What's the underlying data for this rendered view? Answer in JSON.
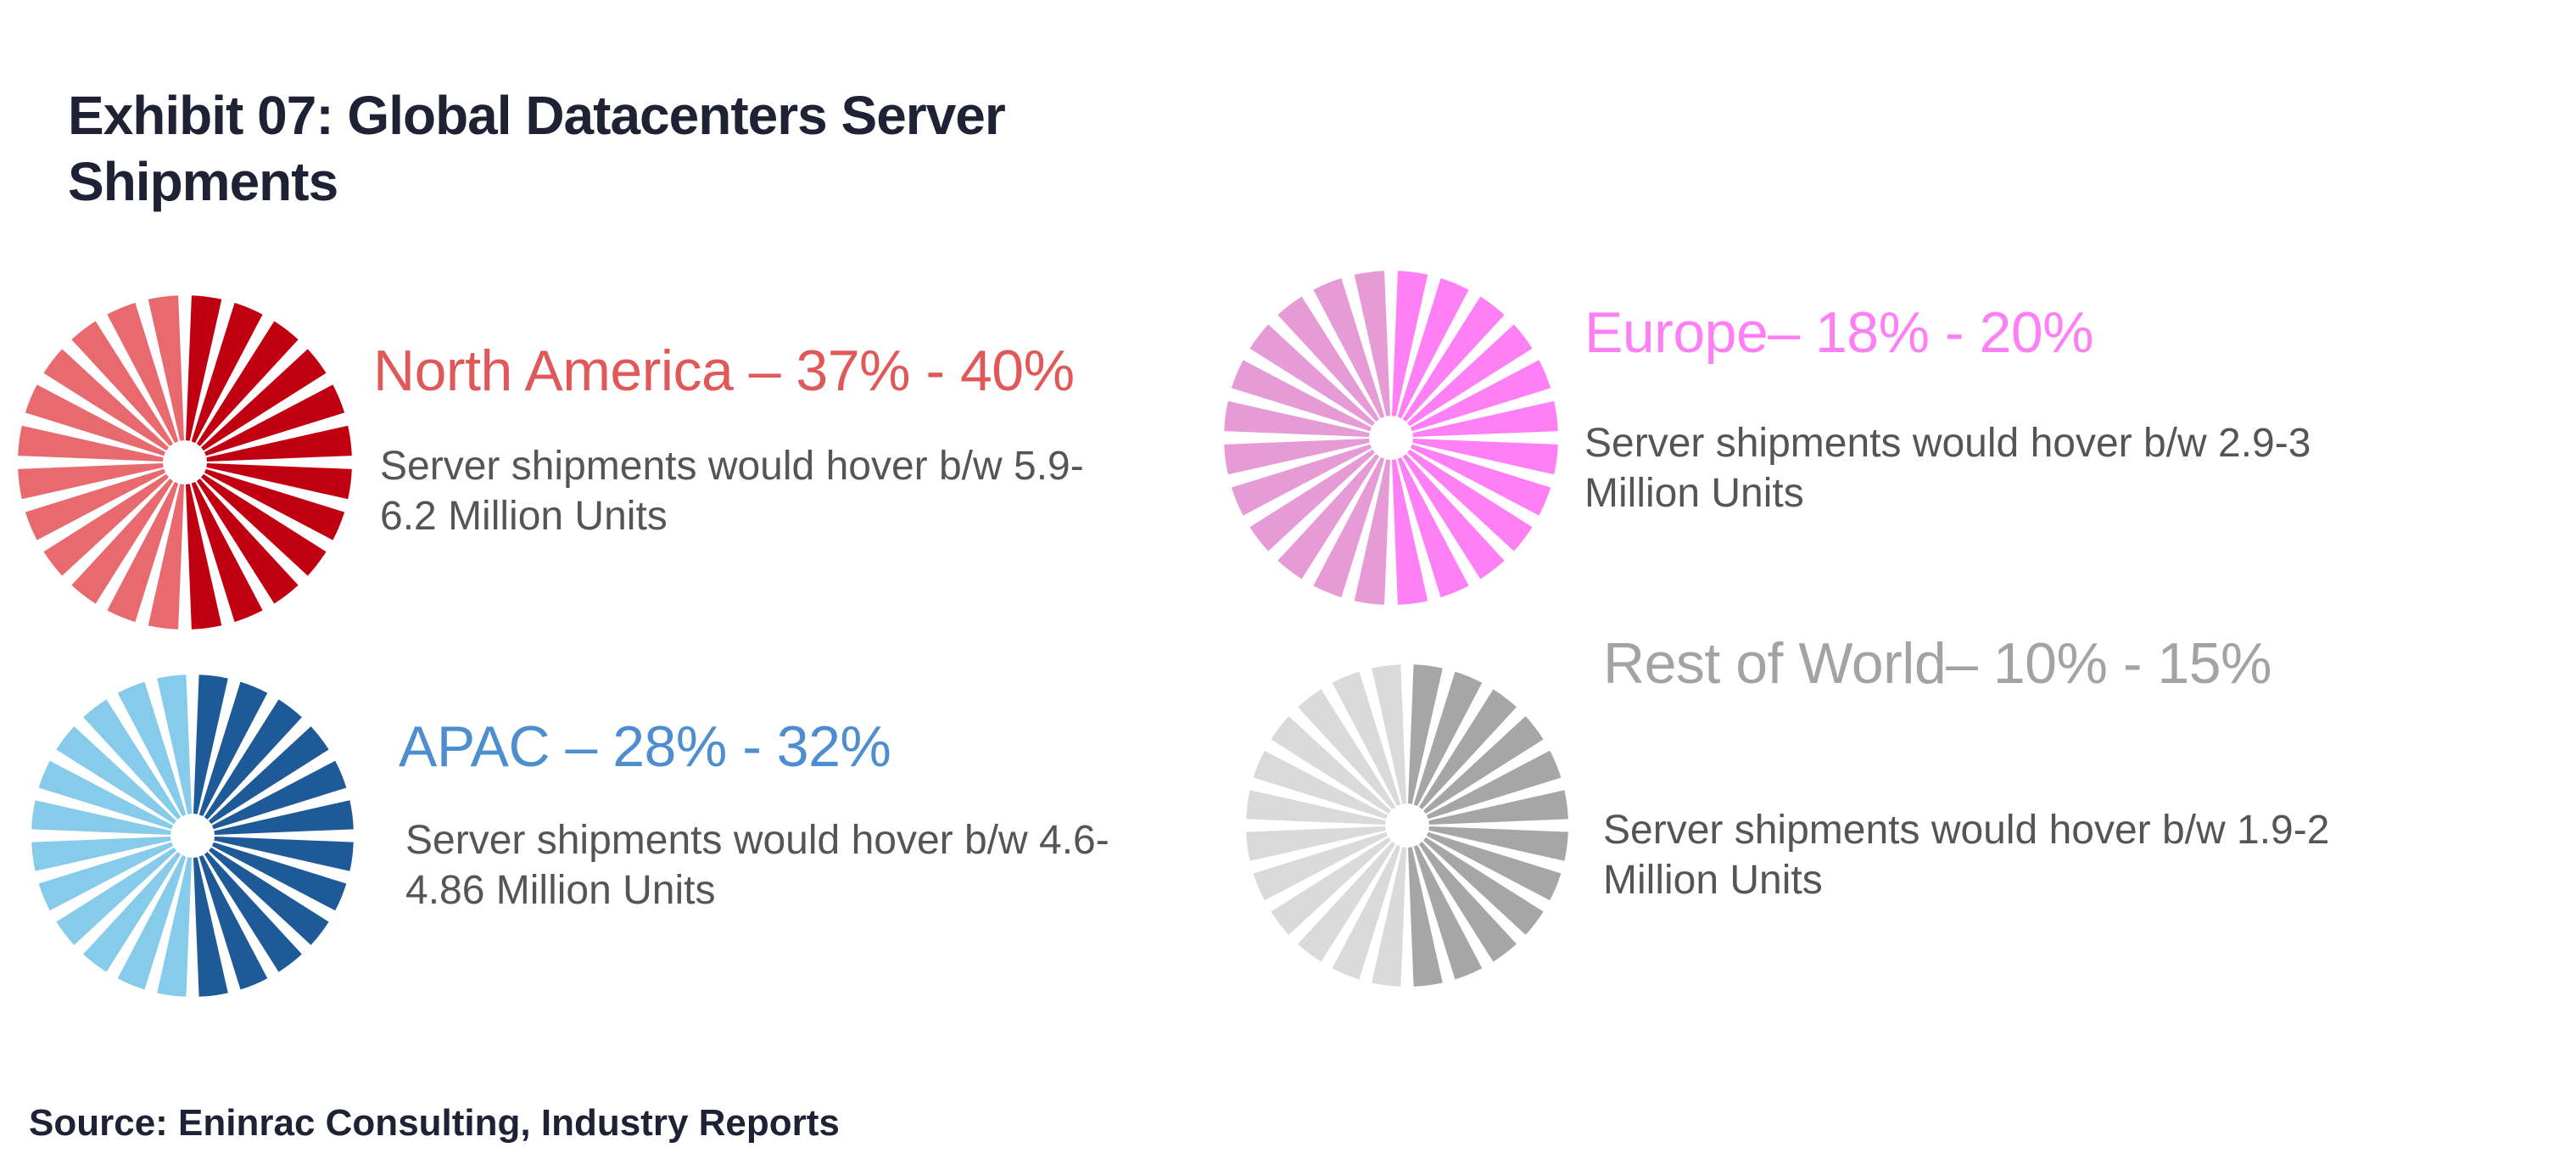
{
  "title": {
    "line1": "Exhibit 07: Global Datacenters Server",
    "line2": "Shipments"
  },
  "source": "Source: Eninrac Consulting, Industry Reports",
  "chart_data": [
    {
      "type": "pie",
      "region": "North America",
      "heading": "North America – 37% - 40%",
      "share_range_pct": [
        37,
        40
      ],
      "description": {
        "line1": "Server shipments would hover b/w 5.9-",
        "line2": "6.2 Million Units"
      },
      "units_range_million": [
        5.9,
        6.2
      ],
      "colors": {
        "highlight": "#c00010",
        "base": "#e86a6e",
        "heading": "#e05858"
      }
    },
    {
      "type": "pie",
      "region": "Europe",
      "heading": "Europe– 18% - 20%",
      "share_range_pct": [
        18,
        20
      ],
      "description": {
        "line1": "Server shipments would hover b/w 2.9-3",
        "line2": "Million Units"
      },
      "units_range_million": [
        2.9,
        3
      ],
      "colors": {
        "highlight": "#ff7ff5",
        "base": "#e69ad6",
        "heading": "#ff7ff5"
      }
    },
    {
      "type": "pie",
      "region": "APAC",
      "heading": "APAC – 28% - 32%",
      "share_range_pct": [
        28,
        32
      ],
      "description": {
        "line1": "Server shipments would hover b/w 4.6-",
        "line2": "4.86 Million Units"
      },
      "units_range_million": [
        4.6,
        4.86
      ],
      "colors": {
        "highlight": "#1f5a98",
        "base": "#86cbea",
        "heading": "#4d8ed0"
      }
    },
    {
      "type": "pie",
      "region": "Rest of World",
      "heading": "Rest of World– 10% - 15%",
      "share_range_pct": [
        10,
        15
      ],
      "description": {
        "line1": "Server shipments would hover b/w 1.9-2",
        "line2": "Million Units"
      },
      "units_range_million": [
        1.9,
        2
      ],
      "colors": {
        "highlight": "#a6a6a6",
        "base": "#dadada",
        "heading": "#a3a3a3"
      }
    }
  ]
}
